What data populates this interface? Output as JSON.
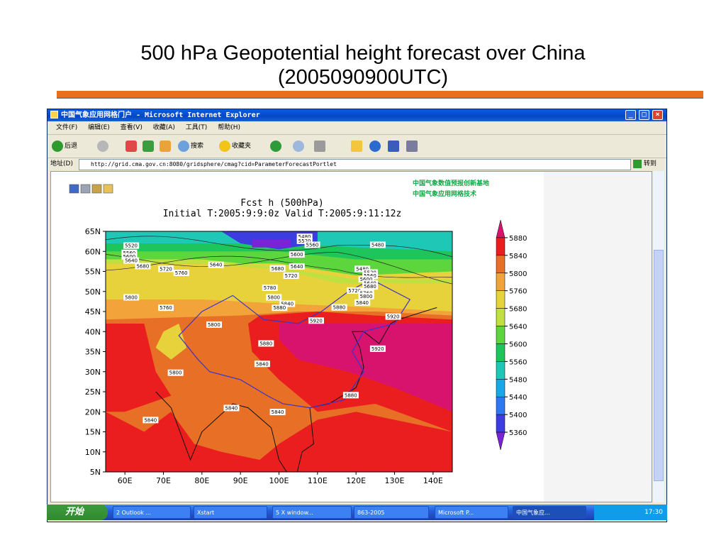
{
  "slide": {
    "title_line1": "500 hPa Geopotential height forecast over China",
    "title_line2": "(2005090900UTC)"
  },
  "window": {
    "title": "中国气象应用网格门户 - Microsoft Internet Explorer",
    "menu": [
      "文件(F)",
      "编辑(E)",
      "查看(V)",
      "收藏(A)",
      "工具(T)",
      "帮助(H)"
    ],
    "toolbar": {
      "back": "后退",
      "search": "搜索",
      "favorites": "收藏夹"
    },
    "address_label": "地址(D)",
    "url": "http://grid.cma.gov.cn:8080/gridsphere/cmag?cid=ParameterForecastPortlet",
    "go": "转到"
  },
  "page": {
    "banner_line1": "中国气象数值预报创新基地",
    "banner_line2": "中国气象应用网格技术"
  },
  "chart_data": {
    "type": "heatmap",
    "title": "Fcst h (500hPa)",
    "subtitle": "Initial T:2005:9:9:0z Valid T:2005:9:11:12z",
    "x_ticks": [
      "60E",
      "70E",
      "80E",
      "90E",
      "100E",
      "110E",
      "120E",
      "130E",
      "140E"
    ],
    "y_ticks": [
      "65N",
      "60N",
      "55N",
      "50N",
      "45N",
      "40N",
      "35N",
      "30N",
      "25N",
      "20N",
      "15N",
      "10N",
      "5N"
    ],
    "xlim": [
      55,
      145
    ],
    "ylim": [
      5,
      65
    ],
    "legend_levels": [
      5360,
      5400,
      5440,
      5480,
      5560,
      5600,
      5640,
      5680,
      5760,
      5800,
      5840,
      5880
    ],
    "legend_colors": [
      "#7a22d6",
      "#3c3ce0",
      "#2c78f0",
      "#18a8ea",
      "#1ec7b6",
      "#1dc55a",
      "#5cd63c",
      "#bfe040",
      "#e8d23c",
      "#f2a33a",
      "#e86f26",
      "#ea1e1e",
      "#d8136e"
    ],
    "contour_labels": [
      {
        "text": "5520",
        "lon": 60,
        "lat": 61
      },
      {
        "text": "5560",
        "lon": 59.5,
        "lat": 59.2
      },
      {
        "text": "5600",
        "lon": 59.5,
        "lat": 58.3
      },
      {
        "text": "5640",
        "lon": 60,
        "lat": 57.3
      },
      {
        "text": "5680",
        "lon": 63,
        "lat": 55.9
      },
      {
        "text": "5720",
        "lon": 69,
        "lat": 55.2
      },
      {
        "text": "5760",
        "lon": 73,
        "lat": 54.2
      },
      {
        "text": "5640",
        "lon": 82,
        "lat": 56.2
      },
      {
        "text": "5680",
        "lon": 98,
        "lat": 55.3
      },
      {
        "text": "5640",
        "lon": 103,
        "lat": 55.8
      },
      {
        "text": "5720",
        "lon": 101.5,
        "lat": 53.5
      },
      {
        "text": "5600",
        "lon": 103,
        "lat": 58.8
      },
      {
        "text": "5480",
        "lon": 105,
        "lat": 63.2
      },
      {
        "text": "5520",
        "lon": 105,
        "lat": 62.2
      },
      {
        "text": "5560",
        "lon": 107,
        "lat": 61.2
      },
      {
        "text": "5480",
        "lon": 124,
        "lat": 61.2
      },
      {
        "text": "5480",
        "lon": 120,
        "lat": 55.2
      },
      {
        "text": "5520",
        "lon": 122,
        "lat": 54.3
      },
      {
        "text": "5560",
        "lon": 122,
        "lat": 53.5
      },
      {
        "text": "5600",
        "lon": 121,
        "lat": 52.6
      },
      {
        "text": "5640",
        "lon": 122,
        "lat": 51.6
      },
      {
        "text": "5680",
        "lon": 122,
        "lat": 50.8
      },
      {
        "text": "5720",
        "lon": 118,
        "lat": 49.8
      },
      {
        "text": "5760",
        "lon": 121,
        "lat": 49.2
      },
      {
        "text": "5800",
        "lon": 121,
        "lat": 48.4
      },
      {
        "text": "5840",
        "lon": 120,
        "lat": 46.8
      },
      {
        "text": "5880",
        "lon": 114,
        "lat": 45.6
      },
      {
        "text": "5800",
        "lon": 60,
        "lat": 48.1
      },
      {
        "text": "5780",
        "lon": 96,
        "lat": 50.5
      },
      {
        "text": "5800",
        "lon": 97,
        "lat": 48.1
      },
      {
        "text": "5840",
        "lon": 100.5,
        "lat": 46.5
      },
      {
        "text": "5880",
        "lon": 98.5,
        "lat": 45.5
      },
      {
        "text": "5760",
        "lon": 69,
        "lat": 45.5
      },
      {
        "text": "5800",
        "lon": 81.5,
        "lat": 41.3
      },
      {
        "text": "5920",
        "lon": 108,
        "lat": 42.3
      },
      {
        "text": "5920",
        "lon": 128,
        "lat": 43.3
      },
      {
        "text": "5880",
        "lon": 95,
        "lat": 36.6
      },
      {
        "text": "5840",
        "lon": 94,
        "lat": 31.5
      },
      {
        "text": "5920",
        "lon": 124,
        "lat": 35.3
      },
      {
        "text": "5800",
        "lon": 71.5,
        "lat": 29.3
      },
      {
        "text": "5880",
        "lon": 117,
        "lat": 23.7
      },
      {
        "text": "5840",
        "lon": 86,
        "lat": 20.5
      },
      {
        "text": "5840",
        "lon": 98,
        "lat": 19.5
      },
      {
        "text": "5840",
        "lon": 65,
        "lat": 17.5
      }
    ]
  },
  "taskbar": {
    "start": "开始",
    "tasks": [
      "2 Outlook ...",
      "Xstart",
      "5 X window...",
      "863-2005",
      "Microsoft P...",
      "中国气象应..."
    ],
    "clock": "17:30"
  }
}
